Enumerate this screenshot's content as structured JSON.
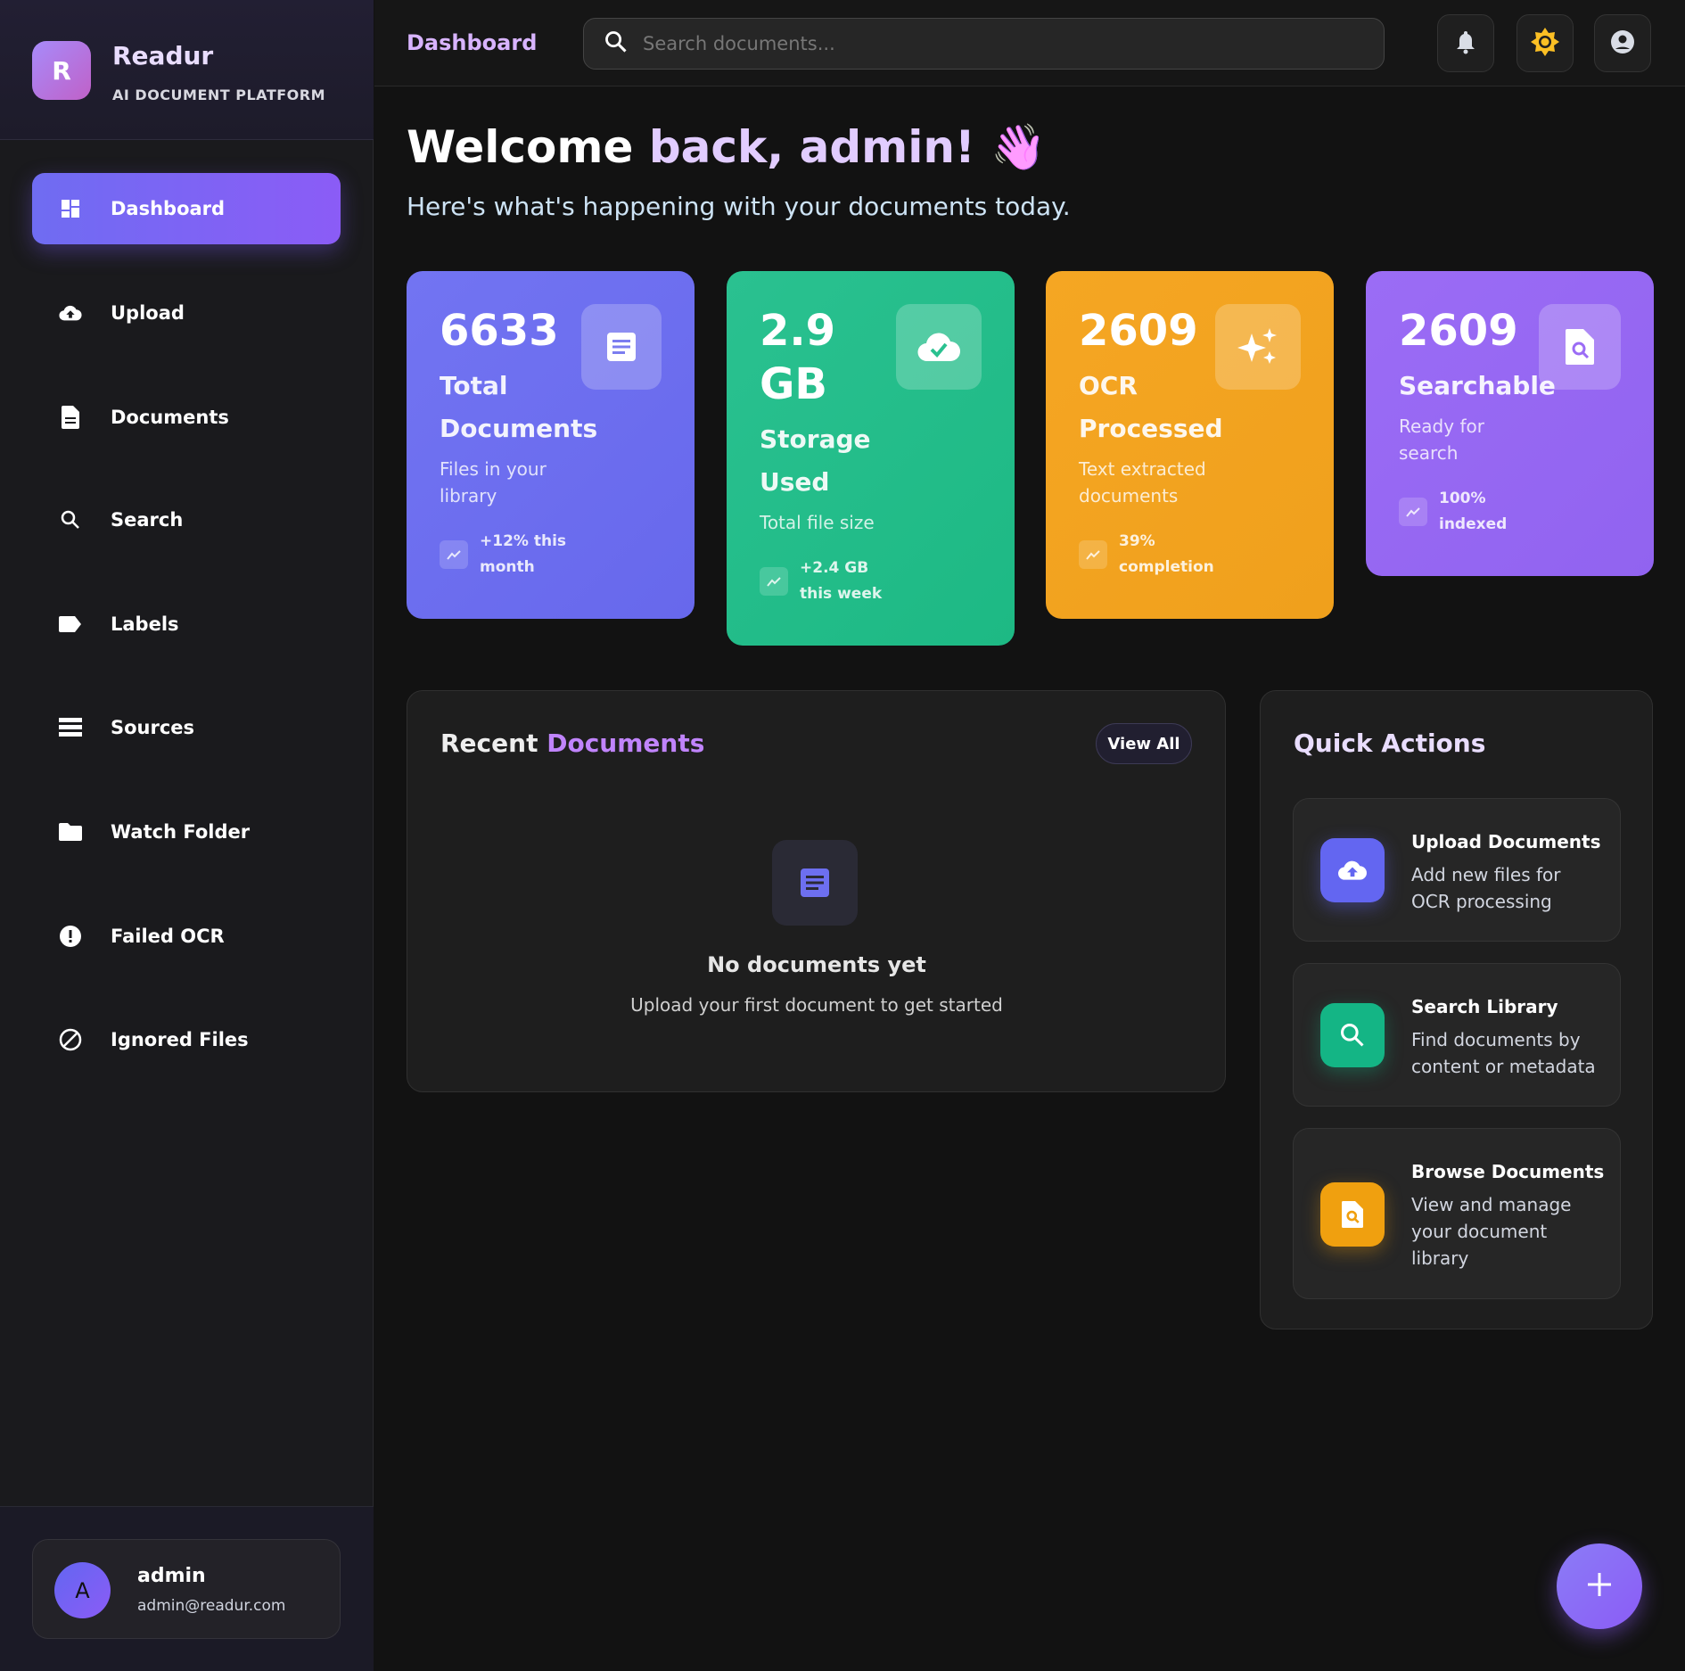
{
  "brand": {
    "initial": "R",
    "name": "Readur",
    "tagline": "AI DOCUMENT PLATFORM"
  },
  "sidebar": {
    "items": [
      {
        "label": "Dashboard",
        "icon": "dashboard-icon",
        "active": true
      },
      {
        "label": "Upload",
        "icon": "cloud-upload-icon"
      },
      {
        "label": "Documents",
        "icon": "document-icon"
      },
      {
        "label": "Search",
        "icon": "search-icon"
      },
      {
        "label": "Labels",
        "icon": "label-icon"
      },
      {
        "label": "Sources",
        "icon": "storage-icon"
      },
      {
        "label": "Watch Folder",
        "icon": "folder-icon"
      },
      {
        "label": "Failed OCR",
        "icon": "error-icon"
      },
      {
        "label": "Ignored Files",
        "icon": "block-icon"
      }
    ]
  },
  "user": {
    "initial": "A",
    "name": "admin",
    "email": "admin@readur.com"
  },
  "header": {
    "title": "Dashboard",
    "search_placeholder": "Search documents..."
  },
  "welcome": {
    "prefix": "Welcome ",
    "name": "back, admin!",
    "emoji": "👋",
    "subtitle": "Here's what's happening with your documents today."
  },
  "stats": [
    {
      "value": "6633",
      "label": "Total Documents",
      "desc": "Files in your library",
      "trend": "+12% this month",
      "color": "#6d6ff0",
      "icon": "document-icon"
    },
    {
      "value": "2.9 GB",
      "label": "Storage Used",
      "desc": "Total file size",
      "trend": "+2.4 GB this week",
      "color": "#22c08a",
      "icon": "cloud-done-icon"
    },
    {
      "value": "2609",
      "label": "OCR Processed",
      "desc": "Text extracted documents",
      "trend": "39% completion",
      "color": "#f3a51f",
      "icon": "sparkle-icon"
    },
    {
      "value": "2609",
      "label": "Searchable",
      "desc": "Ready for search",
      "trend": "100% indexed",
      "color": "#9466f3",
      "icon": "find-in-page-icon"
    }
  ],
  "recent": {
    "title_a": "Recent ",
    "title_b": "Documents",
    "view_all": "View All",
    "empty_title": "No documents yet",
    "empty_sub": "Upload your first document to get started"
  },
  "quick": {
    "title": "Quick Actions",
    "items": [
      {
        "title": "Upload Documents",
        "desc": "Add new files for OCR processing",
        "color": "#6366f1",
        "icon": "cloud-upload-icon"
      },
      {
        "title": "Search Library",
        "desc": "Find documents by content or metadata",
        "color": "#14b585",
        "icon": "search-icon"
      },
      {
        "title": "Browse Documents",
        "desc": "View and manage your document library",
        "color": "#f0a00f",
        "icon": "find-in-page-icon"
      }
    ]
  }
}
